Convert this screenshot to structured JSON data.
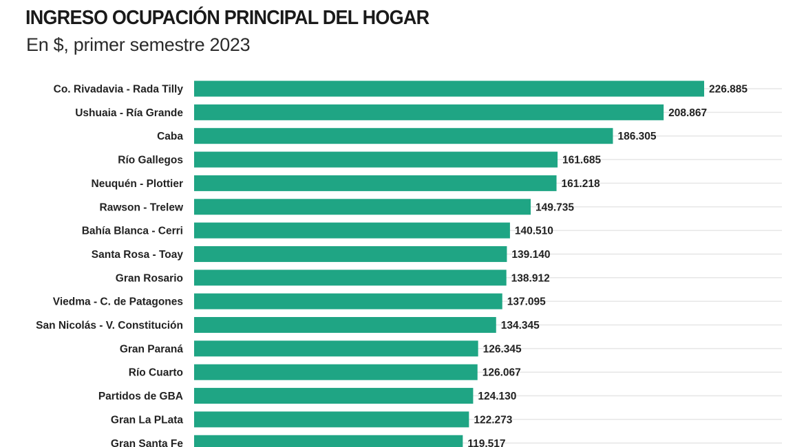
{
  "chart_data": {
    "type": "bar",
    "orientation": "horizontal",
    "title": "INGRESO OCUPACIÓN PRINCIPAL DEL HOGAR",
    "subtitle": "En $, primer semestre 2023",
    "xlabel": "",
    "ylabel": "",
    "bar_color": "#1fa584",
    "grid_color": "#e6e6e6",
    "grid": true,
    "xlim": [
      0,
      226885
    ],
    "categories": [
      "Co. Rivadavia - Rada Tilly",
      "Ushuaia - Ría Grande",
      "Caba",
      "Río Gallegos",
      "Neuquén - Plottier",
      "Rawson - Trelew",
      "Bahía Blanca - Cerri",
      "Santa Rosa - Toay",
      "Gran Rosario",
      "Viedma - C. de Patagones",
      "San Nicolás - V. Constitución",
      "Gran Paraná",
      "Río Cuarto",
      "Partidos de GBA",
      "Gran La PLata",
      "Gran Santa Fe"
    ],
    "values": [
      226885,
      208867,
      186305,
      161685,
      161218,
      149735,
      140510,
      139140,
      138912,
      137095,
      134345,
      126345,
      126067,
      124130,
      122273,
      119517
    ],
    "value_labels": [
      "226.885",
      "208.867",
      "186.305",
      "161.685",
      "161.218",
      "149.735",
      "140.510",
      "139.140",
      "138.912",
      "137.095",
      "134.345",
      "126.345",
      "126.067",
      "124.130",
      "122.273",
      "119.517"
    ]
  }
}
